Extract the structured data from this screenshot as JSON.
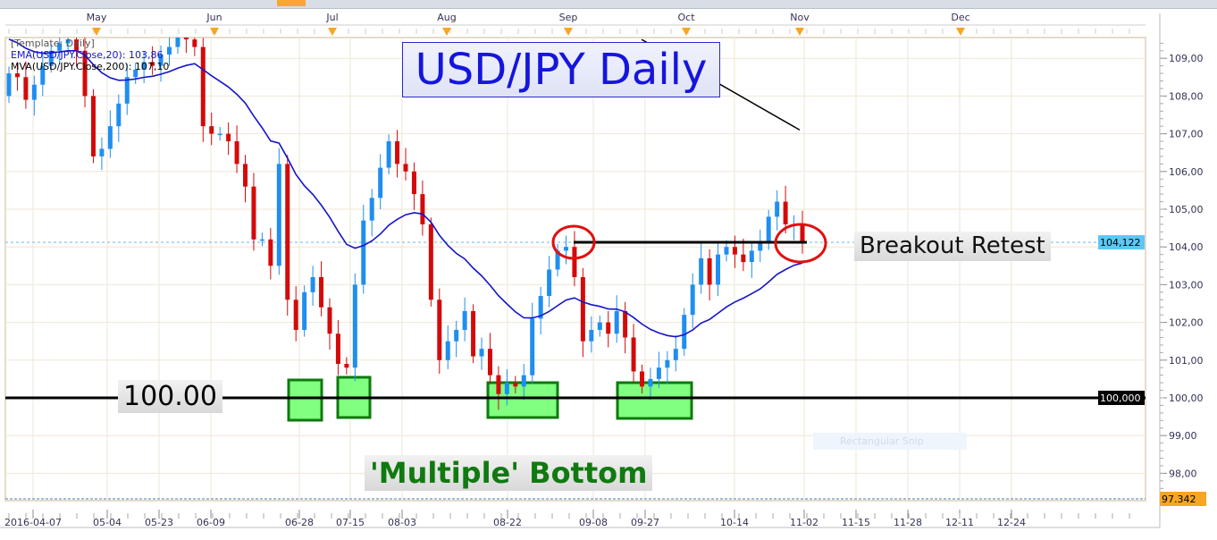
{
  "chart_data": {
    "type": "candlestick",
    "title": "USD/JPY Daily",
    "legend": {
      "template": "[Template: Daily]",
      "ema": "EMA(USD/JPY.Close,20): 103,86",
      "mva": "MVA(USD/JPY.Close,200): 107,10"
    },
    "ylim": [
      97.34,
      109.55
    ],
    "y_ticks": [
      "109,00",
      "108,00",
      "107,00",
      "106,00",
      "105,00",
      "104,00",
      "103,00",
      "102,00",
      "101,00",
      "100,00",
      "99,00",
      "98,00"
    ],
    "y_tick_values": [
      109,
      108,
      107,
      106,
      105,
      104,
      103,
      102,
      101,
      100,
      99,
      98
    ],
    "x_tick_labels": [
      "2016-04-07",
      "05-04",
      "05-23",
      "06-09",
      "06-28",
      "07-15",
      "08-03",
      "08-22",
      "09-08",
      "09-27",
      "10-14",
      "11-02",
      "11-15",
      "11-28",
      "12-11",
      "12-24"
    ],
    "month_labels": [
      "May",
      "Jun",
      "Jul",
      "Aug",
      "Sep",
      "Oct",
      "Nov",
      "Dec"
    ],
    "first_open": 108.0,
    "closes": [
      108.6,
      108.5,
      107.9,
      108.3,
      108.8,
      109.2,
      109.4,
      109.5,
      109.2,
      108.0,
      106.4,
      106.6,
      107.2,
      107.8,
      108.5,
      108.7,
      108.9,
      108.8,
      109.1,
      109.3,
      109.6,
      109.5,
      109.3,
      107.2,
      107.0,
      107.0,
      106.8,
      106.2,
      105.6,
      104.2,
      104.2,
      103.5,
      106.2,
      102.6,
      101.8,
      102.8,
      103.2,
      102.4,
      101.7,
      100.9,
      100.8,
      103.0,
      104.7,
      105.3,
      106.1,
      106.8,
      106.2,
      106.0,
      105.4,
      104.6,
      102.6,
      101.0,
      101.5,
      101.8,
      102.3,
      101.1,
      101.3,
      100.6,
      100.1,
      100.4,
      100.3,
      100.6,
      102.1,
      102.7,
      103.4,
      103.9,
      104.0,
      103.2,
      101.5,
      101.8,
      102.0,
      101.7,
      102.3,
      101.6,
      100.7,
      100.3,
      100.5,
      100.8,
      101.0,
      101.3,
      102.2,
      103.0,
      103.7,
      103.0,
      103.8,
      104.0,
      103.8,
      103.6,
      103.9,
      104.1,
      104.8,
      105.2,
      104.6,
      104.6,
      104.12
    ],
    "mva_segment": [
      109.5,
      107.1
    ],
    "current_price": "104,122",
    "support_price": "100,000",
    "low_marker": "97.342",
    "annotations": {
      "breakout": "Breakout Retest",
      "level": "100.00",
      "bottom": "'Multiple' Bottom"
    },
    "colors": {
      "up": "#1f8ef0",
      "down": "#d40a0a",
      "ema": "#1414c8",
      "mva": "#000000",
      "box": "#80ff80",
      "circle": "#e01010"
    },
    "grid": true
  },
  "snip": "Rectangular Snip"
}
